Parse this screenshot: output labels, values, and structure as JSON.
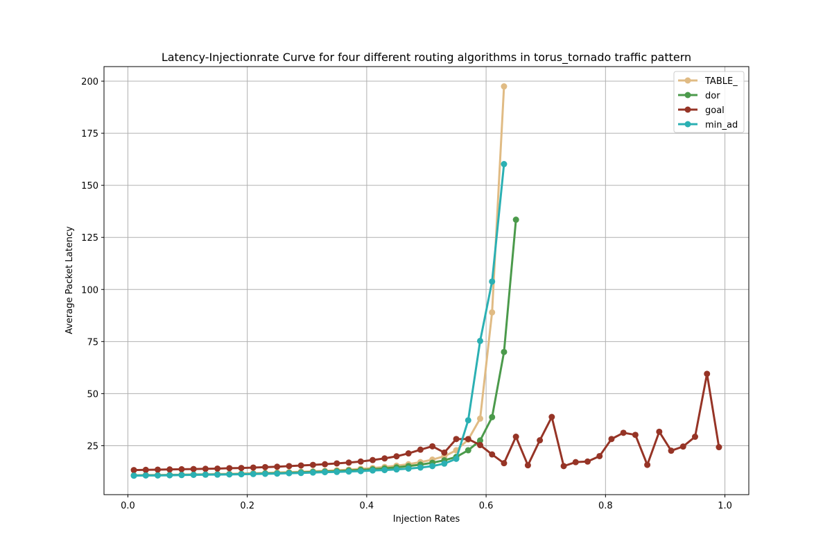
{
  "chart_data": {
    "type": "line",
    "title": "Latency-Injectionrate Curve for four different routing algorithms in torus_tornado traffic pattern",
    "xlabel": "Injection Rates",
    "ylabel": "Average Packet Latency",
    "xlim": [
      -0.04,
      1.04
    ],
    "ylim": [
      1.5,
      207
    ],
    "xticks": [
      0.0,
      0.2,
      0.4,
      0.6,
      0.8,
      1.0
    ],
    "xtick_labels": [
      "0.0",
      "0.2",
      "0.4",
      "0.6",
      "0.8",
      "1.0"
    ],
    "yticks": [
      25,
      50,
      75,
      100,
      125,
      150,
      175,
      200
    ],
    "ytick_labels": [
      "25",
      "50",
      "75",
      "100",
      "125",
      "150",
      "175",
      "200"
    ],
    "grid": true,
    "legend_position": "top-right",
    "series": [
      {
        "name": "TABLE_",
        "color": "#e0bb84",
        "x": [
          0.01,
          0.03,
          0.05,
          0.07,
          0.09,
          0.11,
          0.13,
          0.15,
          0.17,
          0.19,
          0.21,
          0.23,
          0.25,
          0.27,
          0.29,
          0.31,
          0.33,
          0.35,
          0.37,
          0.39,
          0.41,
          0.43,
          0.45,
          0.47,
          0.49,
          0.51,
          0.53,
          0.55,
          0.57,
          0.59,
          0.61,
          0.63
        ],
        "values": [
          10.8,
          10.9,
          10.9,
          11.0,
          11.1,
          11.2,
          11.3,
          11.4,
          11.5,
          11.6,
          11.8,
          11.9,
          12.1,
          12.3,
          12.5,
          12.7,
          12.9,
          13.2,
          13.5,
          13.9,
          14.3,
          14.8,
          15.4,
          16.1,
          17.1,
          18.3,
          19.9,
          22.8,
          27.9,
          38.0,
          89.0,
          197.5
        ]
      },
      {
        "name": "dor",
        "color": "#4b9a4b",
        "x": [
          0.01,
          0.03,
          0.05,
          0.07,
          0.09,
          0.11,
          0.13,
          0.15,
          0.17,
          0.19,
          0.21,
          0.23,
          0.25,
          0.27,
          0.29,
          0.31,
          0.33,
          0.35,
          0.37,
          0.39,
          0.41,
          0.43,
          0.45,
          0.47,
          0.49,
          0.51,
          0.53,
          0.55,
          0.57,
          0.59,
          0.61,
          0.63,
          0.65
        ],
        "values": [
          10.7,
          10.8,
          10.8,
          10.9,
          11.0,
          11.1,
          11.1,
          11.2,
          11.3,
          11.4,
          11.5,
          11.7,
          11.8,
          12.0,
          12.2,
          12.4,
          12.6,
          12.8,
          13.1,
          13.4,
          13.7,
          14.1,
          14.6,
          15.2,
          15.9,
          16.8,
          18.0,
          19.6,
          22.8,
          27.5,
          38.7,
          70.0,
          133.5
        ]
      },
      {
        "name": "goal",
        "color": "#963426",
        "x": [
          0.01,
          0.03,
          0.05,
          0.07,
          0.09,
          0.11,
          0.13,
          0.15,
          0.17,
          0.19,
          0.21,
          0.23,
          0.25,
          0.27,
          0.29,
          0.31,
          0.33,
          0.35,
          0.37,
          0.39,
          0.41,
          0.43,
          0.45,
          0.47,
          0.49,
          0.51,
          0.53,
          0.55,
          0.57,
          0.59,
          0.61,
          0.63,
          0.65,
          0.67,
          0.69,
          0.71,
          0.73,
          0.75,
          0.77,
          0.79,
          0.81,
          0.83,
          0.85,
          0.87,
          0.89,
          0.91,
          0.93,
          0.95,
          0.97,
          0.99
        ],
        "values": [
          13.3,
          13.4,
          13.5,
          13.6,
          13.7,
          13.8,
          13.9,
          14.0,
          14.2,
          14.3,
          14.5,
          14.7,
          14.9,
          15.2,
          15.5,
          15.8,
          16.1,
          16.5,
          16.9,
          17.4,
          18.1,
          18.9,
          19.9,
          21.3,
          23.1,
          24.7,
          21.7,
          28.2,
          28.2,
          25.3,
          20.8,
          16.6,
          29.3,
          15.6,
          27.6,
          38.8,
          15.2,
          17.1,
          17.4,
          20.0,
          28.2,
          31.2,
          30.2,
          15.8,
          31.7,
          22.6,
          24.6,
          29.3,
          59.5,
          24.3
        ]
      },
      {
        "name": "min_ad",
        "color": "#2bb0b3",
        "x": [
          0.01,
          0.03,
          0.05,
          0.07,
          0.09,
          0.11,
          0.13,
          0.15,
          0.17,
          0.19,
          0.21,
          0.23,
          0.25,
          0.27,
          0.29,
          0.31,
          0.33,
          0.35,
          0.37,
          0.39,
          0.41,
          0.43,
          0.45,
          0.47,
          0.49,
          0.51,
          0.53,
          0.55,
          0.57,
          0.59,
          0.61,
          0.63
        ],
        "values": [
          10.6,
          10.7,
          10.7,
          10.8,
          10.9,
          11.0,
          11.1,
          11.1,
          11.2,
          11.3,
          11.4,
          11.5,
          11.6,
          11.8,
          11.9,
          12.1,
          12.3,
          12.4,
          12.6,
          12.8,
          13.1,
          13.3,
          13.6,
          14.0,
          14.5,
          15.2,
          16.4,
          18.7,
          37.2,
          75.3,
          103.8,
          160.2
        ]
      }
    ]
  }
}
